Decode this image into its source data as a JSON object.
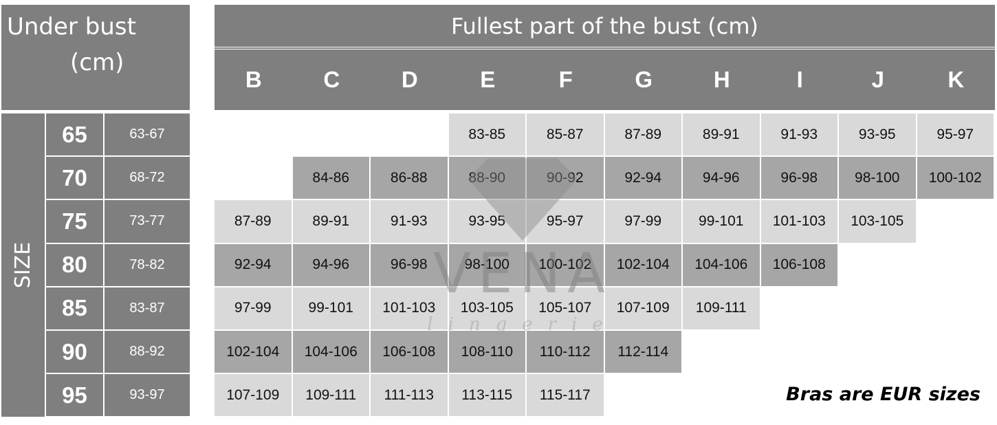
{
  "under_bust": {
    "title_line1": "Under bust",
    "title_line2": "(cm)",
    "size_label": "SIZE",
    "rows": [
      {
        "size": "65",
        "range": "63-67"
      },
      {
        "size": "70",
        "range": "68-72"
      },
      {
        "size": "75",
        "range": "73-77"
      },
      {
        "size": "80",
        "range": "78-82"
      },
      {
        "size": "85",
        "range": "83-87"
      },
      {
        "size": "90",
        "range": "88-92"
      },
      {
        "size": "95",
        "range": "93-97"
      }
    ]
  },
  "fullest_bust": {
    "title": "Fullest part of the bust (cm)",
    "cups": [
      "B",
      "C",
      "D",
      "E",
      "F",
      "G",
      "H",
      "I",
      "J",
      "K"
    ],
    "rows": [
      [
        "",
        "",
        "",
        "83-85",
        "85-87",
        "87-89",
        "89-91",
        "91-93",
        "93-95",
        "95-97"
      ],
      [
        "",
        "84-86",
        "86-88",
        "88-90",
        "90-92",
        "92-94",
        "94-96",
        "96-98",
        "98-100",
        "100-102"
      ],
      [
        "87-89",
        "89-91",
        "91-93",
        "93-95",
        "95-97",
        "97-99",
        "99-101",
        "101-103",
        "103-105",
        ""
      ],
      [
        "92-94",
        "94-96",
        "96-98",
        "98-100",
        "100-102",
        "102-104",
        "104-106",
        "106-108",
        "",
        ""
      ],
      [
        "97-99",
        "99-101",
        "101-103",
        "103-105",
        "105-107",
        "107-109",
        "109-111",
        "",
        "",
        ""
      ],
      [
        "102-104",
        "104-106",
        "106-108",
        "108-110",
        "110-112",
        "112-114",
        "",
        "",
        "",
        ""
      ],
      [
        "107-109",
        "109-111",
        "111-113",
        "113-115",
        "115-117",
        "",
        "",
        "",
        "",
        ""
      ]
    ]
  },
  "note": "Bras are EUR sizes",
  "watermark": {
    "brand": "VENA",
    "sub": "lingerie"
  },
  "colors": {
    "header": "#7f7f7f",
    "row_light": "#d9d9d9",
    "row_dark": "#a6a6a6"
  }
}
